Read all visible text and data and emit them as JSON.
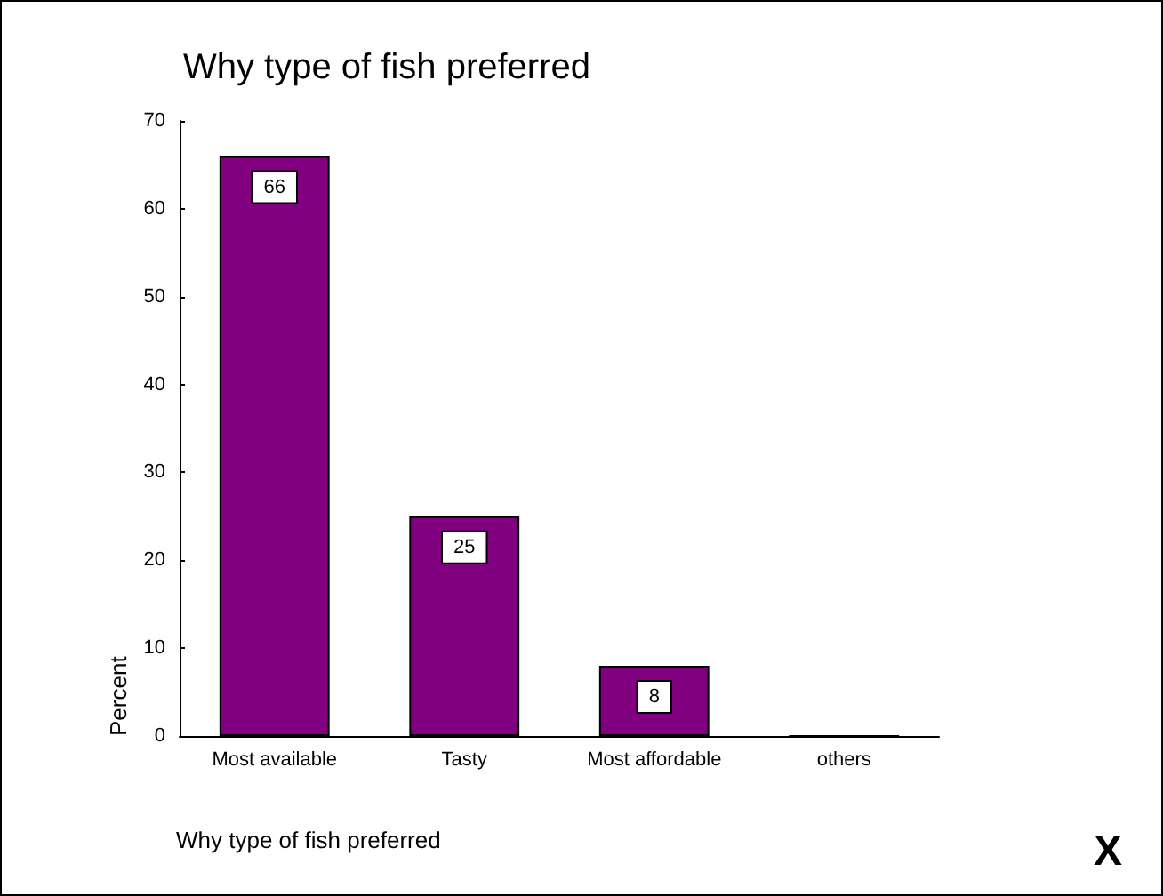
{
  "chart_data": {
    "type": "bar",
    "title": "Why type of fish preferred",
    "xlabel": "Why type of fish preferred",
    "ylabel": "Percent",
    "categories": [
      "Most available",
      "Tasty",
      "Most affordable",
      "others"
    ],
    "values": [
      66,
      25,
      8,
      0
    ],
    "value_labels": [
      "66",
      "25",
      "8",
      null
    ],
    "color": "#800080",
    "ylim": [
      0,
      70
    ],
    "yticks": [
      0,
      10,
      20,
      30,
      40,
      50,
      60,
      70
    ],
    "grid": false,
    "annotations": [
      "X"
    ]
  }
}
